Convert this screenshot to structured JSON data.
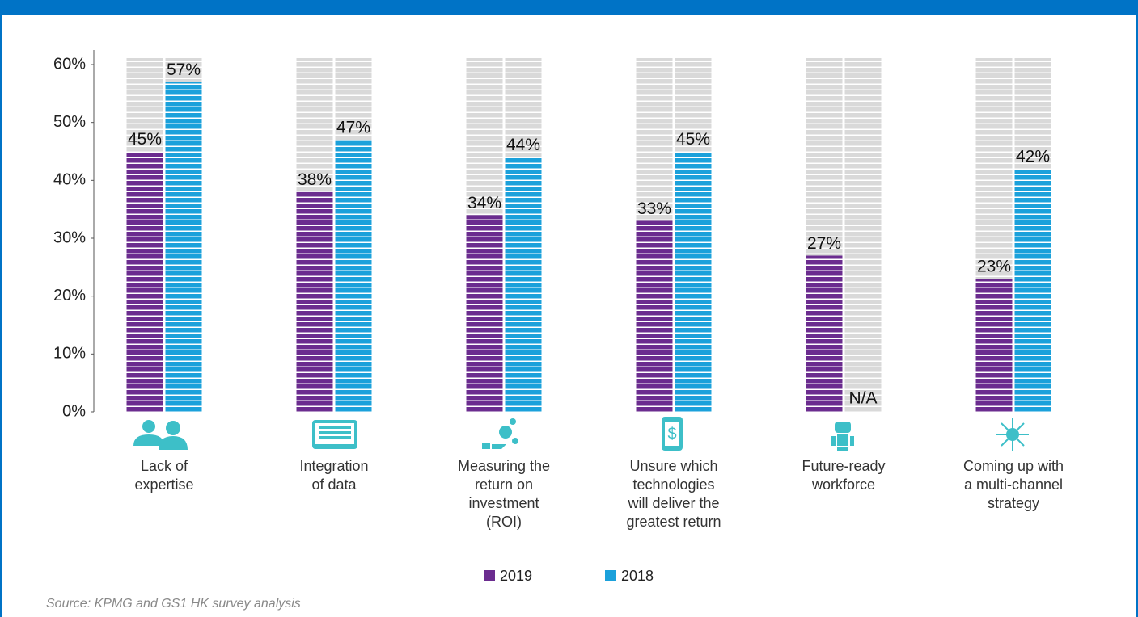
{
  "chart_data": {
    "type": "bar",
    "categories": [
      "Lack of\nexpertise",
      "Integration\nof data",
      "Measuring the\nreturn on\ninvestment\n(ROI)",
      "Unsure which\ntechnologies\nwill deliver the\ngreatest return",
      "Future-ready\nworkforce",
      "Coming up with\na multi-channel\nstrategy"
    ],
    "series": [
      {
        "name": "2019",
        "color": "#6b2c8f",
        "values": [
          45,
          38,
          34,
          33,
          27,
          23
        ],
        "value_labels": [
          "45%",
          "38%",
          "34%",
          "33%",
          "27%",
          "23%"
        ]
      },
      {
        "name": "2018",
        "color": "#1ba1db",
        "values": [
          57,
          47,
          44,
          45,
          null,
          42
        ],
        "value_labels": [
          "57%",
          "47%",
          "44%",
          "45%",
          "N/A",
          "42%"
        ]
      }
    ],
    "ylim": [
      0,
      60
    ],
    "yticks": [
      {
        "value": 0,
        "label": "0%"
      },
      {
        "value": 10,
        "label": "10%"
      },
      {
        "value": 20,
        "label": "20%"
      },
      {
        "value": 30,
        "label": "30%"
      },
      {
        "value": 40,
        "label": "40%"
      },
      {
        "value": 50,
        "label": "50%"
      },
      {
        "value": 60,
        "label": "60%"
      }
    ],
    "source": "Source: KPMG and GS1 HK survey analysis"
  }
}
